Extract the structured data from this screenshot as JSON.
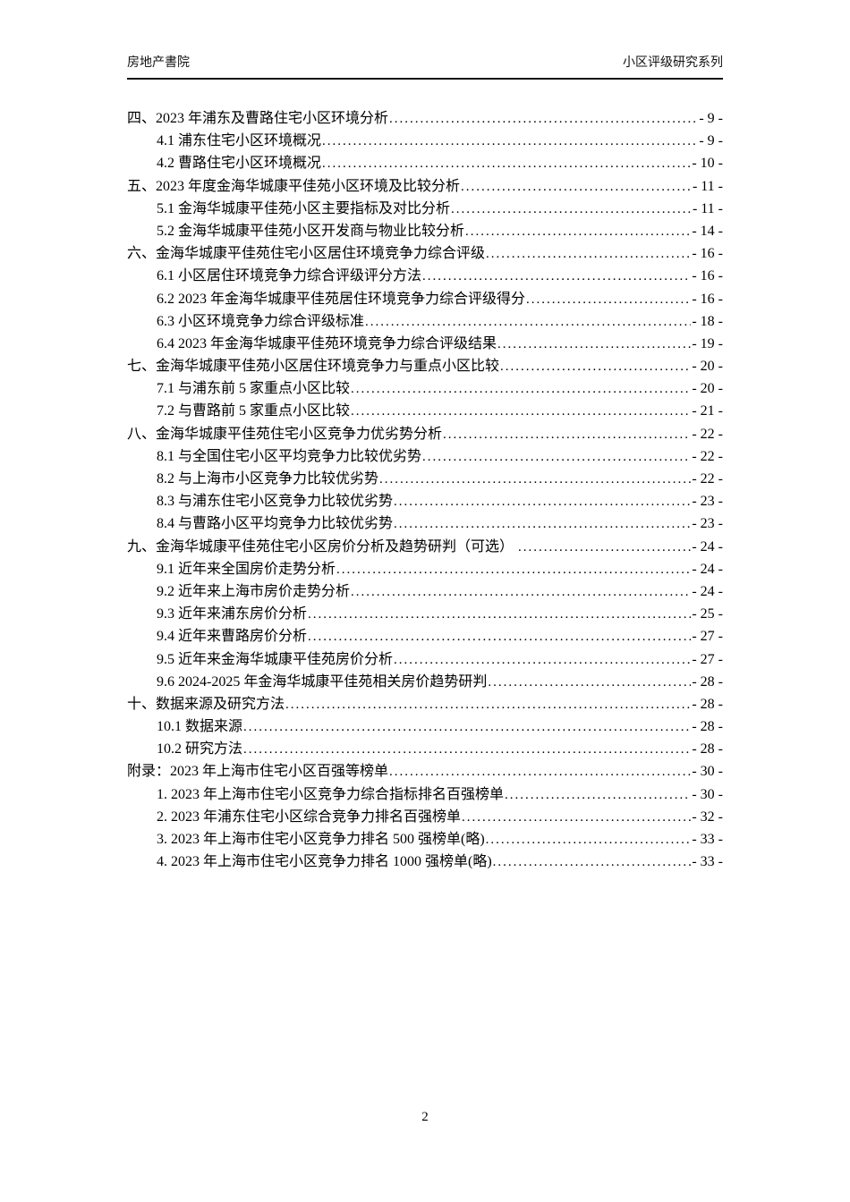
{
  "header": {
    "left": "房地产書院",
    "right": "小区评级研究系列"
  },
  "toc": {
    "items": [
      {
        "level": 1,
        "label": "四、2023 年浦东及曹路住宅小区环境分析",
        "page": "- 9 -"
      },
      {
        "level": 2,
        "label": "4.1 浦东住宅小区环境概况",
        "page": "- 9 -"
      },
      {
        "level": 2,
        "label": "4.2 曹路住宅小区环境概况",
        "page": "- 10 -"
      },
      {
        "level": 1,
        "label": "五、2023 年度金海华城康平佳苑小区环境及比较分析",
        "page": "- 11 -"
      },
      {
        "level": 2,
        "label": "5.1 金海华城康平佳苑小区主要指标及对比分析",
        "page": "- 11 -"
      },
      {
        "level": 2,
        "label": "5.2 金海华城康平佳苑小区开发商与物业比较分析",
        "page": "- 14 -"
      },
      {
        "level": 1,
        "label": "六、金海华城康平佳苑住宅小区居住环境竞争力综合评级",
        "page": "- 16 -"
      },
      {
        "level": 2,
        "label": "6.1 小区居住环境竞争力综合评级评分方法",
        "page": "- 16 -"
      },
      {
        "level": 2,
        "label": "6.2 2023 年金海华城康平佳苑居住环境竞争力综合评级得分",
        "page": "- 16 -"
      },
      {
        "level": 2,
        "label": "6.3 小区环境竞争力综合评级标准",
        "page": "- 18 -"
      },
      {
        "level": 2,
        "label": "6.4 2023 年金海华城康平佳苑环境竞争力综合评级结果",
        "page": "- 19 -"
      },
      {
        "level": 1,
        "label": "七、金海华城康平佳苑小区居住环境竞争力与重点小区比较",
        "page": "- 20 -"
      },
      {
        "level": 2,
        "label": "7.1 与浦东前 5 家重点小区比较",
        "page": "- 20 -"
      },
      {
        "level": 2,
        "label": "7.2 与曹路前 5 家重点小区比较",
        "page": "- 21 -"
      },
      {
        "level": 1,
        "label": "八、金海华城康平佳苑住宅小区竞争力优劣势分析",
        "page": "- 22 -"
      },
      {
        "level": 2,
        "label": "8.1 与全国住宅小区平均竞争力比较优劣势",
        "page": "- 22 -"
      },
      {
        "level": 2,
        "label": "8.2 与上海市小区竞争力比较优劣势",
        "page": "- 22 -"
      },
      {
        "level": 2,
        "label": "8.3 与浦东住宅小区竞争力比较优劣势",
        "page": "- 23 -"
      },
      {
        "level": 2,
        "label": "8.4 与曹路小区平均竞争力比较优劣势",
        "page": "- 23 -"
      },
      {
        "level": 1,
        "label": "九、金海华城康平佳苑住宅小区房价分析及趋势研判（可选） ",
        "page": "- 24 -"
      },
      {
        "level": 2,
        "label": "9.1 近年来全国房价走势分析",
        "page": "- 24 -"
      },
      {
        "level": 2,
        "label": "9.2 近年来上海市房价走势分析",
        "page": "- 24 -"
      },
      {
        "level": 2,
        "label": "9.3 近年来浦东房价分析",
        "page": "- 25 -"
      },
      {
        "level": 2,
        "label": "9.4 近年来曹路房价分析",
        "page": "- 27 -"
      },
      {
        "level": 2,
        "label": "9.5 近年来金海华城康平佳苑房价分析",
        "page": "- 27 -"
      },
      {
        "level": 2,
        "label": "9.6 2024-2025 年金海华城康平佳苑相关房价趋势研判",
        "page": "- 28 -"
      },
      {
        "level": 1,
        "label": "十、数据来源及研究方法",
        "page": "- 28 -"
      },
      {
        "level": 2,
        "label": "10.1 数据来源",
        "page": "- 28 -"
      },
      {
        "level": 2,
        "label": "10.2 研究方法",
        "page": "- 28 -"
      },
      {
        "level": 1,
        "label": "附录：2023 年上海市住宅小区百强等榜单",
        "page": "- 30 -"
      },
      {
        "level": 2,
        "label": "1. 2023 年上海市住宅小区竞争力综合指标排名百强榜单",
        "page": "- 30 -"
      },
      {
        "level": 2,
        "label": "2. 2023 年浦东住宅小区综合竞争力排名百强榜单",
        "page": "- 32 -"
      },
      {
        "level": 2,
        "label": "3. 2023 年上海市住宅小区竞争力排名 500 强榜单(略)",
        "page": "- 33 -"
      },
      {
        "level": 2,
        "label": "4. 2023 年上海市住宅小区竞争力排名 1000 强榜单(略)",
        "page": "- 33 -"
      }
    ]
  },
  "footer": {
    "page_number": "2"
  }
}
